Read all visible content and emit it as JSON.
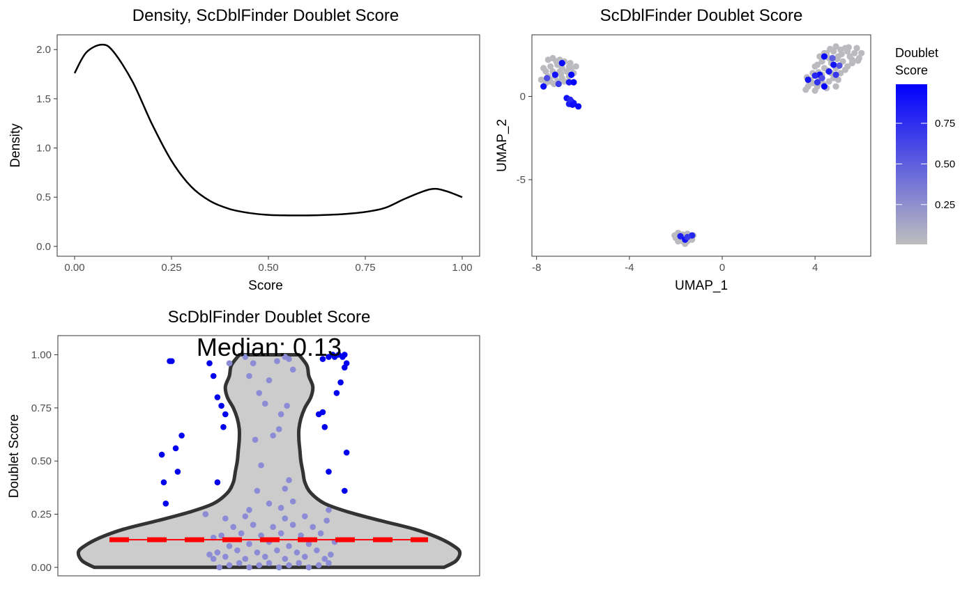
{
  "chart_data": [
    {
      "id": "density",
      "type": "line",
      "title": "Density, ScDblFinder Doublet Score",
      "xlabel": "Score",
      "ylabel": "Density",
      "xlim": [
        -0.045,
        1.045
      ],
      "ylim": [
        -0.1,
        2.15
      ],
      "xticks": [
        "0.00",
        "0.25",
        "0.50",
        "0.75",
        "1.00"
      ],
      "yticks": [
        "0.0",
        "0.5",
        "1.0",
        "1.5",
        "2.0"
      ],
      "grid": false,
      "series": [
        {
          "x": [
            0.0,
            0.03,
            0.07,
            0.1,
            0.15,
            0.2,
            0.25,
            0.3,
            0.35,
            0.4,
            0.45,
            0.5,
            0.55,
            0.6,
            0.65,
            0.7,
            0.75,
            0.8,
            0.85,
            0.9,
            0.93,
            0.96,
            1.0
          ],
          "y": [
            1.76,
            1.97,
            2.05,
            1.98,
            1.67,
            1.24,
            0.87,
            0.61,
            0.46,
            0.38,
            0.34,
            0.32,
            0.315,
            0.315,
            0.32,
            0.33,
            0.35,
            0.39,
            0.48,
            0.56,
            0.585,
            0.56,
            0.5
          ]
        }
      ]
    },
    {
      "id": "umap",
      "type": "scatter",
      "title": "ScDblFinder Doublet Score",
      "xlabel": "UMAP_1",
      "ylabel": "UMAP_2",
      "xlim": [
        -8.2,
        6.4
      ],
      "ylim": [
        -9.6,
        3.7
      ],
      "xticks": [
        "-8",
        "-4",
        "0",
        "4"
      ],
      "yticks": [
        "-5",
        "0"
      ],
      "grid": false,
      "legend": {
        "title_lines": [
          "Doublet",
          "Score"
        ],
        "ticks": [
          "0.25",
          "0.50",
          "0.75"
        ],
        "low_color": "#bebebe",
        "high_color": "#0000ff",
        "placement": "right"
      },
      "clusters": [
        {
          "name": "top-left",
          "points": [
            [
              -7.5,
              2.2
            ],
            [
              -7.3,
              2.3
            ],
            [
              -7.0,
              2.2
            ],
            [
              -6.8,
              2.1
            ],
            [
              -7.4,
              1.8
            ],
            [
              -7.1,
              1.9
            ],
            [
              -6.9,
              1.7
            ],
            [
              -6.6,
              1.8
            ],
            [
              -7.6,
              1.5
            ],
            [
              -7.3,
              1.5
            ],
            [
              -7.0,
              1.5
            ],
            [
              -6.7,
              1.5
            ],
            [
              -6.5,
              1.7
            ],
            [
              -7.5,
              1.2
            ],
            [
              -7.2,
              1.2
            ],
            [
              -6.9,
              1.1
            ],
            [
              -6.6,
              1.2
            ],
            [
              -7.4,
              0.9
            ],
            [
              -7.1,
              0.9
            ],
            [
              -6.8,
              0.9
            ],
            [
              -7.6,
              0.8
            ],
            [
              -6.4,
              1.4
            ],
            [
              -7.8,
              1.0
            ],
            [
              -7.7,
              1.7
            ],
            [
              -6.3,
              1.8
            ],
            [
              -7.25,
              0.75
            ],
            [
              -6.95,
              1.35
            ],
            [
              -7.45,
              1.05
            ],
            [
              -6.55,
              2.0
            ],
            [
              -7.15,
              2.1
            ]
          ],
          "doublets": [
            [
              -6.9,
              2.0,
              0.95
            ],
            [
              -7.2,
              1.3,
              0.9
            ],
            [
              -6.5,
              1.3,
              0.97
            ],
            [
              -7.7,
              0.6,
              0.92
            ],
            [
              -6.6,
              0.85,
              0.88
            ],
            [
              -6.4,
              0.85,
              0.98
            ],
            [
              -7.55,
              1.1,
              0.6
            ],
            [
              -7.05,
              0.75,
              0.7
            ]
          ]
        },
        {
          "name": "mid-left",
          "points": [],
          "doublets": [
            [
              -6.7,
              -0.1,
              0.9
            ],
            [
              -6.5,
              -0.3,
              0.95
            ],
            [
              -6.6,
              -0.45,
              0.85
            ],
            [
              -6.4,
              -0.4,
              0.9
            ],
            [
              -6.2,
              -0.6,
              0.97
            ],
            [
              -6.55,
              -0.2,
              0.8
            ],
            [
              -6.45,
              -0.5,
              0.93
            ]
          ]
        },
        {
          "name": "right",
          "points": [
            [
              4.5,
              2.6
            ],
            [
              4.8,
              2.7
            ],
            [
              5.1,
              2.8
            ],
            [
              5.4,
              2.7
            ],
            [
              5.7,
              2.6
            ],
            [
              4.9,
              3.0
            ],
            [
              5.3,
              2.9
            ],
            [
              4.2,
              2.4
            ],
            [
              4.6,
              2.3
            ],
            [
              5.0,
              2.4
            ],
            [
              5.5,
              2.4
            ],
            [
              5.9,
              2.3
            ],
            [
              4.3,
              2.1
            ],
            [
              4.7,
              2.0
            ],
            [
              5.2,
              2.1
            ],
            [
              5.6,
              2.0
            ],
            [
              4.0,
              1.8
            ],
            [
              4.4,
              1.7
            ],
            [
              4.9,
              1.7
            ],
            [
              5.4,
              1.8
            ],
            [
              3.9,
              1.4
            ],
            [
              4.3,
              1.3
            ],
            [
              4.7,
              1.4
            ],
            [
              5.1,
              1.4
            ],
            [
              3.8,
              1.0
            ],
            [
              4.2,
              1.0
            ],
            [
              4.6,
              0.9
            ],
            [
              5.0,
              1.0
            ],
            [
              3.7,
              0.6
            ],
            [
              4.1,
              0.6
            ],
            [
              4.5,
              0.5
            ],
            [
              4.9,
              0.6
            ],
            [
              3.6,
              0.4
            ],
            [
              4.0,
              0.35
            ],
            [
              5.8,
              2.9
            ],
            [
              6.0,
              2.6
            ],
            [
              5.6,
              2.2
            ],
            [
              4.4,
              2.6
            ],
            [
              3.9,
              0.8
            ],
            [
              4.8,
              1.1
            ],
            [
              5.3,
              1.6
            ],
            [
              4.1,
              1.9
            ],
            [
              5.15,
              2.55
            ],
            [
              4.55,
              1.55
            ],
            [
              3.75,
              0.85
            ],
            [
              4.35,
              0.75
            ],
            [
              5.45,
              2.95
            ],
            [
              4.65,
              2.85
            ],
            [
              5.85,
              2.15
            ],
            [
              4.95,
              2.25
            ],
            [
              3.65,
              1.15
            ],
            [
              4.15,
              1.45
            ]
          ],
          "doublets": [
            [
              4.4,
              2.4,
              0.95
            ],
            [
              4.8,
              1.9,
              0.9
            ],
            [
              4.6,
              1.5,
              0.85
            ],
            [
              4.2,
              1.3,
              0.95
            ],
            [
              3.7,
              1.0,
              0.9
            ],
            [
              4.4,
              0.6,
              0.98
            ],
            [
              4.9,
              1.3,
              0.7
            ],
            [
              4.3,
              1.1,
              0.6
            ],
            [
              4.75,
              2.3,
              0.5
            ],
            [
              4.1,
              0.85,
              0.75
            ],
            [
              5.05,
              1.85,
              0.55
            ],
            [
              4.0,
              1.25,
              0.8
            ]
          ]
        },
        {
          "name": "bottom",
          "points": [
            [
              -1.9,
              -8.2
            ],
            [
              -1.7,
              -8.3
            ],
            [
              -1.5,
              -8.25
            ],
            [
              -2.0,
              -8.5
            ],
            [
              -1.8,
              -8.5
            ],
            [
              -1.6,
              -8.5
            ],
            [
              -1.4,
              -8.45
            ],
            [
              -1.9,
              -8.7
            ],
            [
              -1.7,
              -8.7
            ],
            [
              -1.5,
              -8.7
            ],
            [
              -1.3,
              -8.6
            ],
            [
              -1.6,
              -8.85
            ],
            [
              -2.05,
              -8.35
            ],
            [
              -1.25,
              -8.35
            ],
            [
              -1.75,
              -8.4
            ],
            [
              -1.45,
              -8.6
            ]
          ],
          "doublets": [
            [
              -1.8,
              -8.4,
              0.85
            ],
            [
              -1.6,
              -8.6,
              0.9
            ],
            [
              -1.3,
              -8.35,
              0.8
            ],
            [
              -1.5,
              -8.45,
              0.7
            ]
          ]
        }
      ]
    },
    {
      "id": "violin",
      "type": "scatter",
      "title": "ScDblFinder Doublet Score",
      "xlabel": "",
      "ylabel": "Doublet Score",
      "ylim": [
        -0.04,
        1.09
      ],
      "yticks": [
        "0.00",
        "0.25",
        "0.50",
        "0.75",
        "1.00"
      ],
      "grid": false,
      "median": 0.13,
      "median_label": "Median: 0.13",
      "violin_halfwidth": [
        [
          0.0,
          0.88
        ],
        [
          0.03,
          0.94
        ],
        [
          0.07,
          0.96
        ],
        [
          0.1,
          0.93
        ],
        [
          0.14,
          0.85
        ],
        [
          0.18,
          0.73
        ],
        [
          0.22,
          0.56
        ],
        [
          0.26,
          0.4
        ],
        [
          0.3,
          0.28
        ],
        [
          0.35,
          0.21
        ],
        [
          0.4,
          0.18
        ],
        [
          0.45,
          0.17
        ],
        [
          0.5,
          0.16
        ],
        [
          0.55,
          0.155
        ],
        [
          0.6,
          0.15
        ],
        [
          0.65,
          0.15
        ],
        [
          0.7,
          0.16
        ],
        [
          0.75,
          0.18
        ],
        [
          0.8,
          0.21
        ],
        [
          0.85,
          0.22
        ],
        [
          0.9,
          0.2
        ],
        [
          0.95,
          0.19
        ],
        [
          1.0,
          0.15
        ]
      ],
      "points": [
        [
          -0.25,
          0.0
        ],
        [
          -0.2,
          0.01
        ],
        [
          -0.15,
          0.02
        ],
        [
          -0.1,
          0.0
        ],
        [
          -0.05,
          0.01
        ],
        [
          0.0,
          0.02
        ],
        [
          0.05,
          0.0
        ],
        [
          0.1,
          0.01
        ],
        [
          0.15,
          0.02
        ],
        [
          0.2,
          0.0
        ],
        [
          0.25,
          0.01
        ],
        [
          0.3,
          0.02
        ],
        [
          -0.28,
          0.04
        ],
        [
          -0.22,
          0.05
        ],
        [
          -0.12,
          0.04
        ],
        [
          -0.02,
          0.05
        ],
        [
          0.08,
          0.04
        ],
        [
          0.18,
          0.05
        ],
        [
          0.28,
          0.04
        ],
        [
          -0.26,
          0.07
        ],
        [
          -0.16,
          0.08
        ],
        [
          -0.06,
          0.07
        ],
        [
          0.04,
          0.08
        ],
        [
          0.14,
          0.07
        ],
        [
          0.24,
          0.08
        ],
        [
          -0.2,
          0.1
        ],
        [
          -0.1,
          0.11
        ],
        [
          0.0,
          0.12
        ],
        [
          0.1,
          0.1
        ],
        [
          0.2,
          0.11
        ],
        [
          -0.24,
          0.15
        ],
        [
          -0.14,
          0.16
        ],
        [
          -0.04,
          0.15
        ],
        [
          0.06,
          0.16
        ],
        [
          0.16,
          0.15
        ],
        [
          0.26,
          0.16
        ],
        [
          -0.18,
          0.19
        ],
        [
          -0.08,
          0.2
        ],
        [
          0.02,
          0.19
        ],
        [
          0.12,
          0.2
        ],
        [
          0.22,
          0.19
        ],
        [
          -0.22,
          0.23
        ],
        [
          -0.12,
          0.24
        ],
        [
          0.08,
          0.23
        ],
        [
          0.18,
          0.24
        ],
        [
          -0.1,
          0.27
        ],
        [
          0.06,
          0.28
        ],
        [
          0.0,
          0.3
        ],
        [
          0.12,
          0.31
        ],
        [
          -0.06,
          0.36
        ],
        [
          0.08,
          0.37
        ],
        [
          0.1,
          0.41
        ],
        [
          -0.04,
          0.48
        ],
        [
          0.02,
          0.62
        ],
        [
          0.05,
          0.65
        ],
        [
          -0.07,
          0.6
        ],
        [
          0.06,
          0.72
        ],
        [
          -0.02,
          0.77
        ],
        [
          0.09,
          0.76
        ],
        [
          -0.05,
          0.82
        ],
        [
          0.0,
          0.88
        ],
        [
          -0.1,
          0.9
        ],
        [
          0.12,
          0.93
        ],
        [
          -0.08,
          0.96
        ],
        [
          0.04,
          0.97
        ],
        [
          0.1,
          0.98
        ],
        [
          -0.12,
          0.99
        ],
        [
          0.08,
          0.99
        ],
        [
          -0.2,
          0.96
        ],
        [
          0.3,
          0.27
        ],
        [
          -0.3,
          0.06
        ],
        [
          0.31,
          0.06
        ],
        [
          -0.28,
          0.14
        ],
        [
          0.33,
          0.12
        ],
        [
          -0.32,
          0.25
        ],
        [
          0.29,
          0.22
        ]
      ],
      "outliers": [
        [
          -0.5,
          0.97
        ],
        [
          -0.49,
          0.97
        ],
        [
          -0.44,
          0.62
        ],
        [
          -0.54,
          0.53
        ],
        [
          -0.53,
          0.4
        ],
        [
          -0.52,
          0.3
        ],
        [
          -0.47,
          0.56
        ],
        [
          -0.46,
          0.45
        ],
        [
          -0.3,
          0.96
        ],
        [
          -0.28,
          0.9
        ],
        [
          -0.26,
          0.8
        ],
        [
          -0.24,
          0.76
        ],
        [
          -0.22,
          0.72
        ],
        [
          -0.23,
          0.66
        ],
        [
          -0.26,
          0.4
        ],
        [
          0.25,
          0.72
        ],
        [
          0.27,
          0.73
        ],
        [
          0.28,
          0.66
        ],
        [
          0.3,
          0.45
        ],
        [
          0.34,
          0.82
        ],
        [
          0.36,
          0.87
        ],
        [
          0.38,
          0.94
        ],
        [
          0.38,
          1.0
        ],
        [
          0.37,
          0.99
        ],
        [
          0.35,
          1.0
        ],
        [
          0.32,
          1.0
        ],
        [
          0.3,
          0.99
        ],
        [
          0.39,
          0.54
        ],
        [
          0.38,
          0.36
        ],
        [
          0.33,
          0.99
        ],
        [
          0.27,
          0.98
        ],
        [
          0.39,
          0.96
        ]
      ]
    }
  ]
}
